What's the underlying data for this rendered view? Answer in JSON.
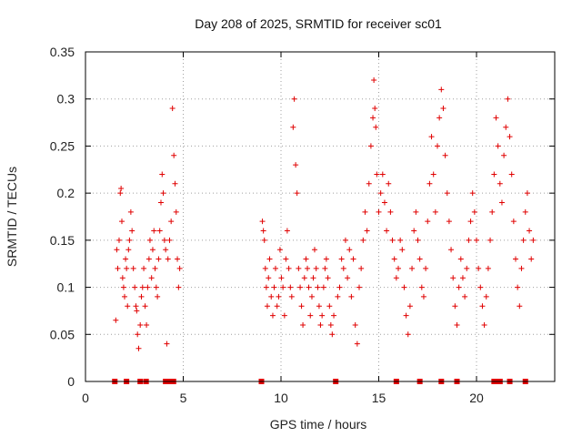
{
  "chart_data": {
    "type": "scatter",
    "title": "Day 208 of 2025, SRMTID for receiver sc01",
    "xlabel": "GPS time / hours",
    "ylabel": "SRMTID / TECUs",
    "xlim": [
      0,
      24
    ],
    "ylim": [
      0,
      0.35
    ],
    "grid": true,
    "marker": "+",
    "marker_color": "#e00000",
    "x_ticks": [
      {
        "value": 0,
        "label": "0"
      },
      {
        "value": 5,
        "label": "5"
      },
      {
        "value": 10,
        "label": "10"
      },
      {
        "value": 15,
        "label": "15"
      },
      {
        "value": 20,
        "label": "20"
      }
    ],
    "y_ticks": [
      {
        "value": 0,
        "label": "0"
      },
      {
        "value": 0.05,
        "label": "0.05"
      },
      {
        "value": 0.1,
        "label": "0.1"
      },
      {
        "value": 0.15,
        "label": "0.15"
      },
      {
        "value": 0.2,
        "label": "0.2"
      },
      {
        "value": 0.25,
        "label": "0.25"
      },
      {
        "value": 0.3,
        "label": "0.3"
      },
      {
        "value": 0.35,
        "label": "0.35"
      }
    ],
    "zero_markers_x": [
      1.5,
      2.1,
      2.8,
      3.1,
      4.1,
      4.3,
      4.5,
      9.0,
      12.8,
      15.9,
      17.1,
      18.2,
      19.0,
      20.9,
      21.1,
      21.2,
      21.7,
      22.5
    ],
    "series": [
      {
        "name": "SRMTID",
        "x": [
          1.55,
          1.6,
          1.65,
          1.72,
          1.78,
          1.82,
          1.86,
          1.9,
          1.95,
          2.0,
          2.05,
          2.1,
          2.15,
          2.2,
          2.25,
          2.32,
          2.38,
          2.45,
          2.52,
          2.58,
          2.62,
          2.66,
          2.72,
          2.8,
          2.86,
          2.92,
          2.98,
          3.05,
          3.12,
          3.18,
          3.25,
          3.3,
          3.38,
          3.44,
          3.5,
          3.56,
          3.62,
          3.68,
          3.74,
          3.8,
          3.86,
          3.92,
          3.98,
          4.04,
          4.1,
          4.16,
          4.22,
          4.3,
          4.38,
          4.45,
          4.52,
          4.58,
          4.64,
          4.7,
          4.76,
          4.82,
          9.05,
          9.1,
          9.15,
          9.2,
          9.25,
          9.3,
          9.36,
          9.42,
          9.5,
          9.58,
          9.65,
          9.72,
          9.8,
          9.88,
          9.95,
          10.02,
          10.1,
          10.18,
          10.25,
          10.32,
          10.4,
          10.48,
          10.55,
          10.62,
          10.68,
          10.75,
          10.82,
          10.9,
          10.98,
          11.05,
          11.12,
          11.2,
          11.28,
          11.35,
          11.42,
          11.5,
          11.58,
          11.65,
          11.72,
          11.8,
          11.88,
          11.95,
          12.02,
          12.1,
          12.18,
          12.25,
          12.32,
          12.4,
          12.48,
          12.55,
          12.62,
          12.7,
          12.9,
          13.0,
          13.1,
          13.2,
          13.3,
          13.4,
          13.5,
          13.6,
          13.7,
          13.8,
          13.9,
          14.0,
          14.1,
          14.2,
          14.3,
          14.4,
          14.5,
          14.6,
          14.7,
          14.75,
          14.8,
          14.85,
          14.9,
          15.0,
          15.1,
          15.2,
          15.3,
          15.4,
          15.5,
          15.6,
          15.7,
          15.8,
          15.9,
          16.0,
          16.1,
          16.2,
          16.3,
          16.4,
          16.5,
          16.6,
          16.7,
          16.8,
          16.9,
          17.0,
          17.1,
          17.2,
          17.3,
          17.4,
          17.5,
          17.6,
          17.7,
          17.8,
          17.9,
          18.0,
          18.1,
          18.2,
          18.3,
          18.4,
          18.5,
          18.6,
          18.7,
          18.8,
          18.9,
          19.0,
          19.1,
          19.2,
          19.3,
          19.4,
          19.5,
          19.6,
          19.7,
          19.8,
          19.9,
          20.0,
          20.1,
          20.2,
          20.3,
          20.4,
          20.5,
          20.6,
          20.7,
          20.8,
          20.9,
          21.0,
          21.1,
          21.2,
          21.3,
          21.4,
          21.5,
          21.6,
          21.7,
          21.8,
          21.9,
          22.0,
          22.1,
          22.2,
          22.3,
          22.4,
          22.5,
          22.6,
          22.7,
          22.8,
          22.9
        ],
        "y": [
          0.065,
          0.14,
          0.12,
          0.15,
          0.2,
          0.205,
          0.17,
          0.11,
          0.1,
          0.09,
          0.13,
          0.12,
          0.08,
          0.14,
          0.15,
          0.18,
          0.16,
          0.12,
          0.1,
          0.08,
          0.075,
          0.05,
          0.035,
          0.06,
          0.09,
          0.1,
          0.12,
          0.08,
          0.06,
          0.1,
          0.13,
          0.15,
          0.11,
          0.14,
          0.16,
          0.12,
          0.1,
          0.09,
          0.13,
          0.16,
          0.19,
          0.22,
          0.2,
          0.15,
          0.14,
          0.04,
          0.13,
          0.15,
          0.17,
          0.29,
          0.24,
          0.21,
          0.18,
          0.13,
          0.1,
          0.12,
          0.17,
          0.16,
          0.15,
          0.12,
          0.1,
          0.08,
          0.11,
          0.13,
          0.09,
          0.07,
          0.1,
          0.12,
          0.08,
          0.09,
          0.14,
          0.11,
          0.1,
          0.07,
          0.13,
          0.16,
          0.12,
          0.1,
          0.09,
          0.27,
          0.3,
          0.23,
          0.2,
          0.12,
          0.1,
          0.08,
          0.06,
          0.11,
          0.13,
          0.12,
          0.1,
          0.07,
          0.09,
          0.11,
          0.14,
          0.12,
          0.1,
          0.08,
          0.06,
          0.07,
          0.1,
          0.12,
          0.13,
          0.11,
          0.08,
          0.06,
          0.05,
          0.07,
          0.09,
          0.1,
          0.13,
          0.12,
          0.15,
          0.11,
          0.14,
          0.09,
          0.13,
          0.06,
          0.04,
          0.1,
          0.12,
          0.15,
          0.18,
          0.16,
          0.21,
          0.25,
          0.28,
          0.32,
          0.29,
          0.27,
          0.22,
          0.18,
          0.2,
          0.22,
          0.19,
          0.16,
          0.21,
          0.18,
          0.15,
          0.13,
          0.11,
          0.12,
          0.15,
          0.14,
          0.1,
          0.07,
          0.05,
          0.08,
          0.12,
          0.16,
          0.18,
          0.15,
          0.13,
          0.1,
          0.09,
          0.12,
          0.17,
          0.21,
          0.26,
          0.22,
          0.18,
          0.25,
          0.28,
          0.31,
          0.29,
          0.24,
          0.2,
          0.17,
          0.14,
          0.11,
          0.08,
          0.06,
          0.1,
          0.13,
          0.11,
          0.09,
          0.12,
          0.15,
          0.17,
          0.2,
          0.18,
          0.15,
          0.12,
          0.1,
          0.08,
          0.06,
          0.09,
          0.12,
          0.15,
          0.18,
          0.22,
          0.28,
          0.25,
          0.21,
          0.19,
          0.24,
          0.27,
          0.3,
          0.26,
          0.22,
          0.17,
          0.13,
          0.1,
          0.08,
          0.12,
          0.15,
          0.18,
          0.2,
          0.16,
          0.13,
          0.15
        ]
      }
    ]
  }
}
